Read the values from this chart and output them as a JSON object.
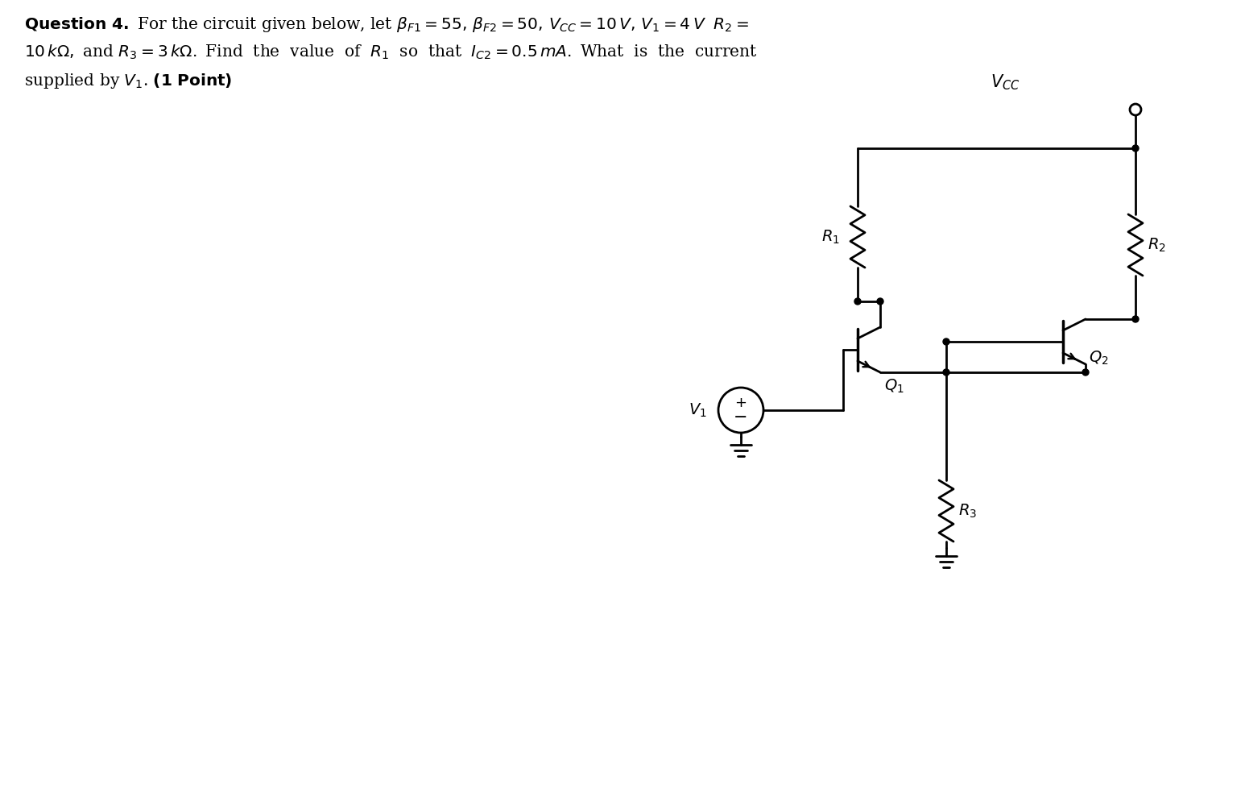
{
  "bg_color": "#ffffff",
  "line_color": "#000000",
  "fig_width": 15.46,
  "fig_height": 9.94,
  "lw": 2.0,
  "text_line1": "$\\mathbf{Question\\ 4.}$ For the circuit given below, let $\\beta_{F1} = 55,\\, \\beta_{F2} = 50,\\, V_{CC} = 10\\,V,\\, V_1 = 4\\,V\\;\\ R_2 =$",
  "text_line2": "$10\\,k\\Omega,$ and $R_3 = 3\\,k\\Omega.$ Find  the  value  of  $R_1$  so  that  $I_{C2} = 0.5\\,mA.$ What  is  the  current",
  "text_line3": "supplied by $V_1$. $\\mathbf{(1\\ Point)}$",
  "fontsize_text": 14.5,
  "fontsize_label": 14,
  "fontsize_vcc": 15
}
